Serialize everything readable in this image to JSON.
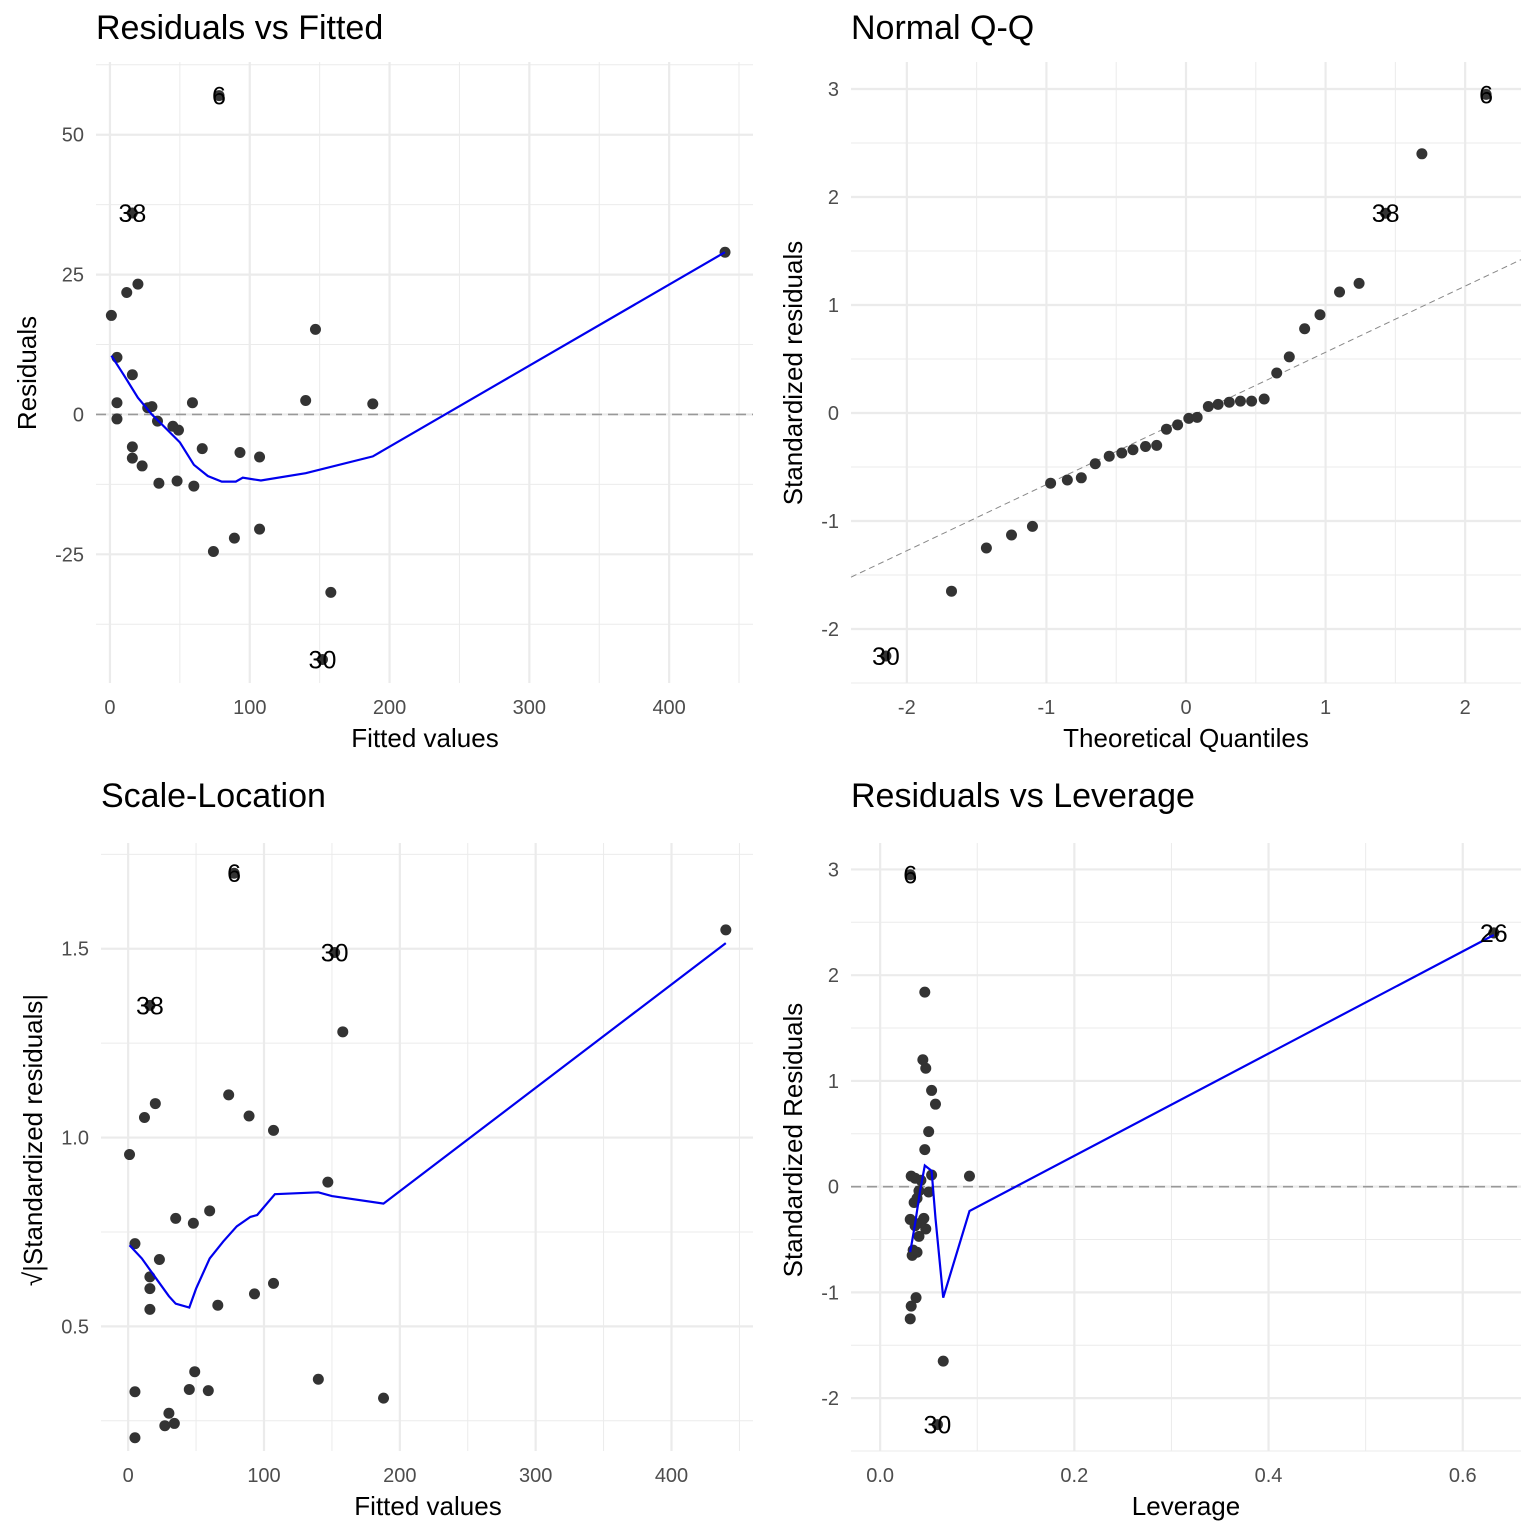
{
  "colors": {
    "point": "#333333",
    "smooth": "#0000ee",
    "grid": "#ebebeb",
    "refline": "#999999",
    "background": "#ffffff"
  },
  "chart_data": [
    {
      "type": "scatter",
      "title": "Residuals vs Fitted",
      "xlabel": "Fitted values",
      "ylabel": "Residuals",
      "xlim": [
        -10,
        460
      ],
      "ylim": [
        -48,
        63
      ],
      "xticks": [
        0,
        100,
        200,
        300,
        400
      ],
      "yticks": [
        -25,
        0,
        25,
        50
      ],
      "ytick_labels": [
        "-25",
        "0",
        "25",
        "50"
      ],
      "grid": true,
      "hline": 0,
      "points": [
        {
          "x": 1,
          "y": 17.7
        },
        {
          "x": 5,
          "y": 10.2
        },
        {
          "x": 5,
          "y": 2.1
        },
        {
          "x": 5,
          "y": -0.8
        },
        {
          "x": 12,
          "y": 21.8
        },
        {
          "x": 16,
          "y": 7.1
        },
        {
          "x": 16,
          "y": -5.8
        },
        {
          "x": 16,
          "y": -7.8
        },
        {
          "x": 20,
          "y": 23.3
        },
        {
          "x": 23,
          "y": -9.2
        },
        {
          "x": 27,
          "y": 1.2
        },
        {
          "x": 30,
          "y": 1.4
        },
        {
          "x": 34,
          "y": -1.2
        },
        {
          "x": 35,
          "y": -12.3
        },
        {
          "x": 45,
          "y": -2.1
        },
        {
          "x": 48,
          "y": -11.9
        },
        {
          "x": 49,
          "y": -2.8
        },
        {
          "x": 59,
          "y": 2.1
        },
        {
          "x": 60,
          "y": -12.8
        },
        {
          "x": 66,
          "y": -6.1
        },
        {
          "x": 74,
          "y": -24.5
        },
        {
          "x": 89,
          "y": -22.1
        },
        {
          "x": 93,
          "y": -6.8
        },
        {
          "x": 107,
          "y": -20.5
        },
        {
          "x": 107,
          "y": -7.6
        },
        {
          "x": 140,
          "y": 2.5
        },
        {
          "x": 147,
          "y": 15.2
        },
        {
          "x": 158,
          "y": -31.8
        },
        {
          "x": 188,
          "y": 1.9
        },
        {
          "x": 440,
          "y": 29.0
        }
      ],
      "labeled_points": [
        {
          "label": "6",
          "x": 78,
          "y": 57.0
        },
        {
          "label": "38",
          "x": 16,
          "y": 36.0
        },
        {
          "label": "30",
          "x": 152,
          "y": -43.8
        }
      ],
      "smooth": {
        "x": [
          1,
          10,
          20,
          30,
          40,
          50,
          60,
          70,
          80,
          90,
          95,
          108,
          140,
          188,
          440
        ],
        "y": [
          10.5,
          7,
          3,
          0,
          -2.5,
          -5,
          -9,
          -11,
          -12,
          -12,
          -11.3,
          -11.8,
          -10.5,
          -7.5,
          29.0
        ]
      }
    },
    {
      "type": "scatter",
      "title": "Normal Q-Q",
      "xlabel": "Theoretical Quantiles",
      "ylabel": "Standardized residuals",
      "xlim": [
        -2.4,
        2.4
      ],
      "ylim": [
        -2.5,
        3.25
      ],
      "xticks": [
        -2,
        -1,
        0,
        1,
        2
      ],
      "yticks": [
        -2,
        -1,
        0,
        1,
        2,
        3
      ],
      "grid": true,
      "reference_line": {
        "x": [
          -2.4,
          2.4
        ],
        "y": [
          -1.52,
          1.42
        ]
      },
      "points": [
        {
          "x": -1.68,
          "y": -1.65
        },
        {
          "x": -1.43,
          "y": -1.25
        },
        {
          "x": -1.25,
          "y": -1.13
        },
        {
          "x": -1.1,
          "y": -1.05
        },
        {
          "x": -0.97,
          "y": -0.65
        },
        {
          "x": -0.85,
          "y": -0.62
        },
        {
          "x": -0.75,
          "y": -0.6
        },
        {
          "x": -0.65,
          "y": -0.47
        },
        {
          "x": -0.55,
          "y": -0.4
        },
        {
          "x": -0.46,
          "y": -0.37
        },
        {
          "x": -0.38,
          "y": -0.34
        },
        {
          "x": -0.29,
          "y": -0.31
        },
        {
          "x": -0.21,
          "y": -0.3
        },
        {
          "x": -0.14,
          "y": -0.15
        },
        {
          "x": -0.06,
          "y": -0.11
        },
        {
          "x": 0.02,
          "y": -0.05
        },
        {
          "x": 0.08,
          "y": -0.04
        },
        {
          "x": 0.16,
          "y": 0.06
        },
        {
          "x": 0.23,
          "y": 0.08
        },
        {
          "x": 0.31,
          "y": 0.1
        },
        {
          "x": 0.39,
          "y": 0.11
        },
        {
          "x": 0.47,
          "y": 0.11
        },
        {
          "x": 0.56,
          "y": 0.13
        },
        {
          "x": 0.65,
          "y": 0.37
        },
        {
          "x": 0.74,
          "y": 0.52
        },
        {
          "x": 0.85,
          "y": 0.78
        },
        {
          "x": 0.96,
          "y": 0.91
        },
        {
          "x": 1.1,
          "y": 1.12
        },
        {
          "x": 1.24,
          "y": 1.2
        },
        {
          "x": 1.69,
          "y": 2.4
        }
      ],
      "labeled_points": [
        {
          "label": "6",
          "x": 2.15,
          "y": 2.95
        },
        {
          "label": "38",
          "x": 1.43,
          "y": 1.85
        },
        {
          "label": "30",
          "x": -2.15,
          "y": -2.25
        }
      ]
    },
    {
      "type": "scatter",
      "title": "Scale-Location",
      "xlabel": "Fitted values",
      "ylabel_radical": "√",
      "ylabel": "|Standardized residuals|",
      "xlim": [
        -20,
        460
      ],
      "ylim": [
        0.17,
        1.78
      ],
      "xticks": [
        0,
        100,
        200,
        300,
        400
      ],
      "yticks": [
        0.5,
        1.0,
        1.5
      ],
      "ytick_labels": [
        "0.5",
        "1.0",
        "1.5"
      ],
      "grid": true,
      "points": [
        {
          "x": 1,
          "y": 0.955
        },
        {
          "x": 5,
          "y": 0.719
        },
        {
          "x": 5,
          "y": 0.327
        },
        {
          "x": 5,
          "y": 0.205
        },
        {
          "x": 12,
          "y": 1.053
        },
        {
          "x": 16,
          "y": 0.631
        },
        {
          "x": 16,
          "y": 0.6
        },
        {
          "x": 16,
          "y": 0.545
        },
        {
          "x": 20,
          "y": 1.09
        },
        {
          "x": 23,
          "y": 0.677
        },
        {
          "x": 27,
          "y": 0.237
        },
        {
          "x": 30,
          "y": 0.27
        },
        {
          "x": 34,
          "y": 0.243
        },
        {
          "x": 35,
          "y": 0.786
        },
        {
          "x": 45,
          "y": 0.333
        },
        {
          "x": 48,
          "y": 0.773
        },
        {
          "x": 49,
          "y": 0.38
        },
        {
          "x": 59,
          "y": 0.33
        },
        {
          "x": 60,
          "y": 0.806
        },
        {
          "x": 66,
          "y": 0.556
        },
        {
          "x": 74,
          "y": 1.113
        },
        {
          "x": 89,
          "y": 1.057
        },
        {
          "x": 93,
          "y": 0.586
        },
        {
          "x": 107,
          "y": 1.019
        },
        {
          "x": 107,
          "y": 0.614
        },
        {
          "x": 140,
          "y": 0.36
        },
        {
          "x": 147,
          "y": 0.882
        },
        {
          "x": 158,
          "y": 1.28
        },
        {
          "x": 188,
          "y": 0.31
        },
        {
          "x": 440,
          "y": 1.55
        }
      ],
      "labeled_points": [
        {
          "label": "6",
          "x": 78,
          "y": 1.7
        },
        {
          "label": "38",
          "x": 16,
          "y": 1.35
        },
        {
          "label": "30",
          "x": 152,
          "y": 1.49
        }
      ],
      "smooth": {
        "x": [
          1,
          10,
          20,
          30,
          35,
          45,
          50,
          60,
          70,
          80,
          90,
          95,
          108,
          140,
          150,
          188,
          440
        ],
        "y": [
          0.715,
          0.68,
          0.63,
          0.58,
          0.56,
          0.55,
          0.6,
          0.68,
          0.725,
          0.765,
          0.79,
          0.795,
          0.85,
          0.855,
          0.845,
          0.825,
          1.515
        ]
      }
    },
    {
      "type": "scatter",
      "title": "Residuals vs Leverage",
      "xlabel": "Leverage",
      "ylabel": "Standardized Residuals",
      "xlim": [
        -0.03,
        0.66
      ],
      "ylim": [
        -2.5,
        3.25
      ],
      "xticks": [
        0.0,
        0.2,
        0.4,
        0.6
      ],
      "xtick_labels": [
        "0.0",
        "0.2",
        "0.4",
        "0.6"
      ],
      "yticks": [
        -2,
        -1,
        0,
        1,
        2,
        3
      ],
      "grid": true,
      "hline": 0,
      "points": [
        {
          "x": 0.031,
          "y": -1.25
        },
        {
          "x": 0.032,
          "y": -1.13
        },
        {
          "x": 0.037,
          "y": -1.05
        },
        {
          "x": 0.033,
          "y": -0.65
        },
        {
          "x": 0.038,
          "y": -0.62
        },
        {
          "x": 0.034,
          "y": -0.6
        },
        {
          "x": 0.04,
          "y": -0.47
        },
        {
          "x": 0.047,
          "y": -0.4
        },
        {
          "x": 0.036,
          "y": -0.37
        },
        {
          "x": 0.042,
          "y": -0.34
        },
        {
          "x": 0.031,
          "y": -0.31
        },
        {
          "x": 0.045,
          "y": -0.3
        },
        {
          "x": 0.035,
          "y": -0.15
        },
        {
          "x": 0.038,
          "y": -0.11
        },
        {
          "x": 0.05,
          "y": -0.05
        },
        {
          "x": 0.04,
          "y": -0.04
        },
        {
          "x": 0.042,
          "y": 0.06
        },
        {
          "x": 0.036,
          "y": 0.08
        },
        {
          "x": 0.032,
          "y": 0.1
        },
        {
          "x": 0.092,
          "y": 0.1
        },
        {
          "x": 0.053,
          "y": 0.11
        },
        {
          "x": 0.046,
          "y": 0.35
        },
        {
          "x": 0.05,
          "y": 0.52
        },
        {
          "x": 0.057,
          "y": 0.78
        },
        {
          "x": 0.053,
          "y": 0.91
        },
        {
          "x": 0.047,
          "y": 1.12
        },
        {
          "x": 0.044,
          "y": 1.2
        },
        {
          "x": 0.046,
          "y": 1.84
        },
        {
          "x": 0.065,
          "y": -1.65
        },
        {
          "x": 0.632,
          "y": 2.4
        }
      ],
      "labeled_points": [
        {
          "label": "6",
          "x": 0.031,
          "y": 2.95
        },
        {
          "label": "26",
          "x": 0.632,
          "y": 2.4
        },
        {
          "label": "30",
          "x": 0.059,
          "y": -2.25
        }
      ],
      "smooth": {
        "x": [
          0.031,
          0.036,
          0.041,
          0.046,
          0.053,
          0.057,
          0.065,
          0.092,
          0.632
        ],
        "y": [
          -0.62,
          -0.35,
          -0.05,
          0.2,
          0.15,
          -0.3,
          -1.05,
          -0.23,
          2.38
        ]
      }
    }
  ]
}
